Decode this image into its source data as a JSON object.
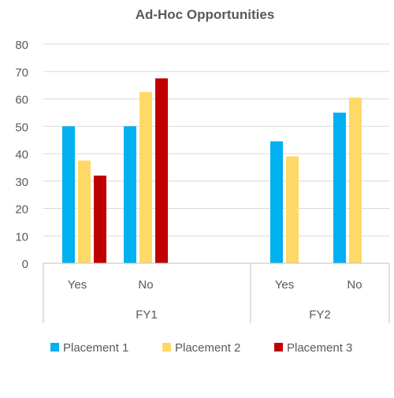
{
  "chart_data": {
    "type": "bar",
    "title": "Ad-Hoc Opportunities",
    "xlabel": "",
    "ylabel": "",
    "ylim": [
      0,
      80
    ],
    "y_ticks": [
      "0",
      "10",
      "20",
      "30",
      "40",
      "50",
      "60",
      "70",
      "80"
    ],
    "grid": true,
    "legend_position": "bottom",
    "groups": [
      {
        "label": "FY1",
        "categories": [
          "Yes",
          "No"
        ]
      },
      {
        "label": "FY2",
        "categories": [
          "Yes",
          "No"
        ]
      }
    ],
    "categories": [
      "FY1 Yes",
      "FY1 No",
      "FY2 Yes",
      "FY2 No"
    ],
    "series": [
      {
        "name": "Placement 1",
        "color": "#00B0F0",
        "values": [
          50,
          50,
          44.5,
          55
        ]
      },
      {
        "name": "Placement 2",
        "color": "#FFD966",
        "values": [
          37.5,
          62.5,
          39,
          60.5
        ]
      },
      {
        "name": "Placement 3",
        "color": "#C00000",
        "values": [
          32,
          67.5,
          null,
          null
        ]
      }
    ]
  }
}
